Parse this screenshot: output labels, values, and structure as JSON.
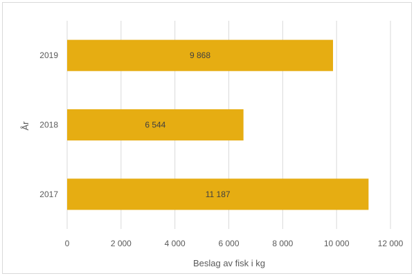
{
  "chart_data": {
    "type": "bar",
    "orientation": "horizontal",
    "categories": [
      "2019",
      "2018",
      "2017"
    ],
    "values": [
      9868,
      6544,
      11187
    ],
    "data_labels": [
      "9 868",
      "6 544",
      "11 187"
    ],
    "xlabel": "Beslag av fisk i kg",
    "ylabel": "År",
    "xlim": [
      0,
      12000
    ],
    "x_ticks": [
      0,
      2000,
      4000,
      6000,
      8000,
      10000,
      12000
    ],
    "x_tick_labels": [
      "0",
      "2 000",
      "4 000",
      "6 000",
      "8 000",
      "10 000",
      "12 000"
    ],
    "grid": "vertical",
    "legend": "none",
    "bar_color": "#E6AD12",
    "grid_color": "#D9D9D9"
  }
}
